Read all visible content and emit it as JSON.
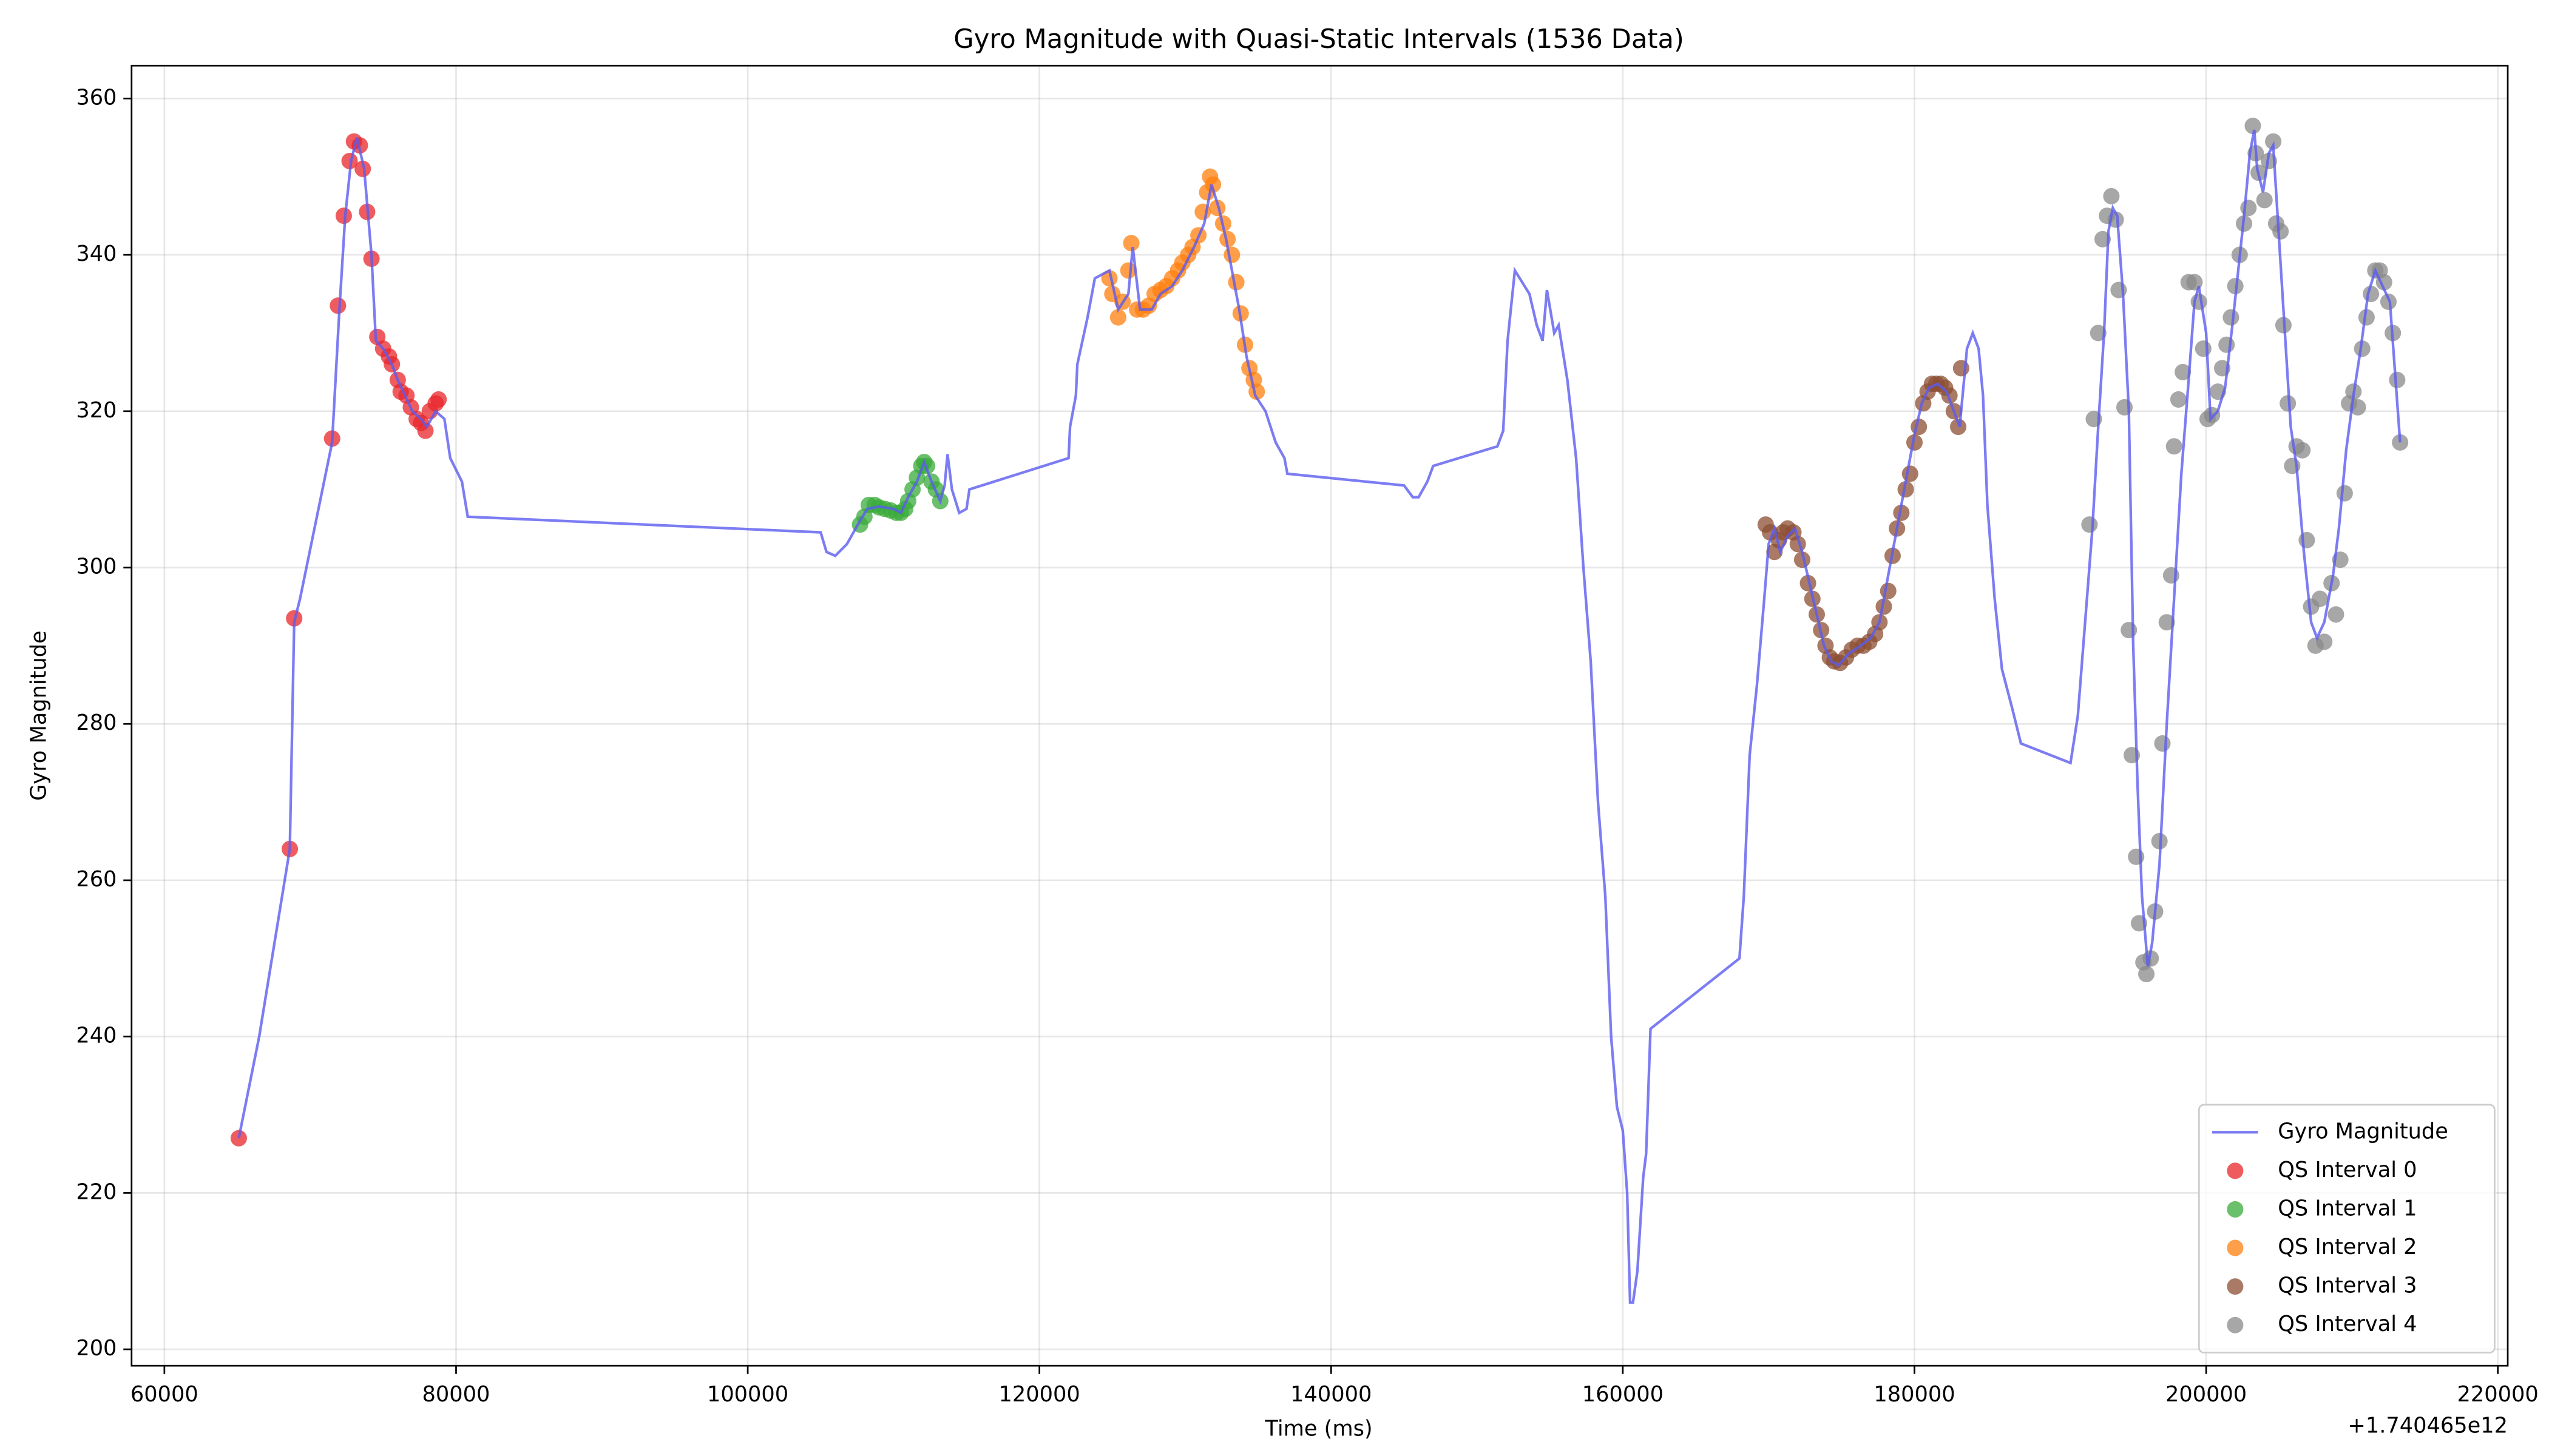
{
  "chart_data": {
    "type": "line",
    "title": "Gyro Magnitude with Quasi-Static Intervals (1536 Data)",
    "x_label": "Time (ms)",
    "y_label": "Gyro Magnitude",
    "x_offset_label": "+1.740465e12",
    "xlim": [
      57750,
      220680
    ],
    "ylim": [
      197.9,
      364.2
    ],
    "xticks": [
      60000,
      80000,
      100000,
      120000,
      140000,
      160000,
      180000,
      200000,
      220000
    ],
    "yticks": [
      200,
      220,
      240,
      260,
      280,
      300,
      320,
      340,
      360
    ],
    "grid": true,
    "legend": "lower right",
    "series": [
      {
        "name": "Gyro Magnitude",
        "type": "line",
        "color": "#5b5bf0",
        "x": [
          65100,
          66500,
          68600,
          68900,
          69300,
          71500,
          72000,
          72400,
          72800,
          73200,
          73700,
          74200,
          74500,
          75000,
          75600,
          76000,
          76500,
          77000,
          77600,
          78000,
          78600,
          79200,
          79600,
          80400,
          80800,
          105000,
          105400,
          106000,
          106800,
          107700,
          108200,
          109000,
          110000,
          110500,
          111000,
          111600,
          112100,
          112600,
          113200,
          113500,
          113700,
          114000,
          114500,
          115000,
          115200,
          122000,
          122100,
          122500,
          122600,
          123300,
          123800,
          124800,
          125400,
          126100,
          126400,
          126900,
          127700,
          128300,
          129100,
          129800,
          130600,
          131300,
          131800,
          132300,
          132800,
          133200,
          133700,
          134200,
          134800,
          135500,
          136200,
          136800,
          137000,
          145000,
          145600,
          146000,
          146600,
          147000,
          151400,
          151800,
          152100,
          152600,
          153600,
          154100,
          154500,
          154800,
          155300,
          155600,
          156200,
          156800,
          157300,
          157800,
          158300,
          158800,
          159200,
          159600,
          160000,
          160300,
          160500,
          160700,
          161000,
          161400,
          161600,
          161900,
          168000,
          168300,
          168700,
          169200,
          169700,
          170000,
          170400,
          170800,
          171300,
          171800,
          172300,
          172800,
          173300,
          173800,
          174300,
          174800,
          175500,
          176300,
          177000,
          177600,
          178100,
          178600,
          179000,
          179500,
          180000,
          180500,
          181000,
          181600,
          182200,
          182700,
          183100,
          183600,
          184000,
          184400,
          184700,
          185000,
          185500,
          186000,
          186700,
          187300,
          190700,
          191200,
          191700,
          192200,
          192600,
          193000,
          193300,
          193600,
          193900,
          194300,
          194700,
          195000,
          195300,
          195600,
          196000,
          196300,
          196800,
          197300,
          197800,
          198300,
          198800,
          199200,
          199500,
          200000,
          200300,
          200800,
          201300,
          201800,
          202200,
          202600,
          203000,
          203300,
          203500,
          203900,
          204300,
          204600,
          205000,
          205400,
          205800,
          206200,
          206700,
          207200,
          207600,
          208100,
          208700,
          209100,
          209600,
          210100,
          210600,
          211100,
          211600,
          212100,
          212600,
          213300
        ],
        "values": [
          227,
          240,
          264,
          293,
          296,
          316,
          333,
          345,
          352,
          355,
          351,
          340,
          329,
          328,
          326,
          324,
          322,
          320,
          319,
          318,
          320,
          319,
          314,
          311,
          306.5,
          304.5,
          302,
          301.5,
          303,
          306,
          307.5,
          307.8,
          307.5,
          307,
          309,
          311,
          313.5,
          311,
          308.5,
          310.5,
          314.5,
          310,
          307,
          307.5,
          310,
          314,
          318,
          322,
          326,
          332,
          337,
          338,
          333,
          335,
          341,
          333,
          333,
          335,
          336,
          338,
          341,
          344,
          349,
          346,
          342,
          338,
          333,
          327,
          322,
          320,
          316,
          314,
          312,
          310.5,
          309,
          309,
          311,
          313,
          315.5,
          317.5,
          329,
          338,
          335,
          331,
          329,
          335.5,
          330,
          331,
          324,
          314,
          300,
          288,
          270,
          258,
          240,
          231,
          228,
          220,
          206,
          206,
          210,
          222,
          225,
          241,
          250,
          258,
          276,
          285,
          296,
          303,
          305,
          302,
          304,
          305,
          302,
          298,
          294,
          290,
          288,
          287.5,
          289,
          290,
          291,
          293,
          298,
          303,
          307,
          312,
          317,
          321,
          323,
          323.5,
          322.5,
          320,
          318,
          328,
          330,
          328,
          322,
          308,
          296,
          287,
          282,
          277.5,
          275,
          281,
          293,
          305,
          318,
          330,
          343,
          346,
          345,
          335,
          320,
          290,
          272,
          258,
          249,
          252,
          262,
          280,
          296,
          312,
          324,
          334,
          336,
          330,
          319,
          320,
          323,
          331,
          338,
          345,
          353,
          356,
          351,
          348,
          353,
          354,
          342,
          330,
          318,
          313,
          302,
          293,
          291,
          293,
          299,
          305,
          315,
          322,
          328,
          335,
          338,
          336,
          334,
          316
        ]
      },
      {
        "name": "QS Interval 0",
        "type": "scatter",
        "color": "#e8252b",
        "x": [
          65100,
          68600,
          68900,
          71500,
          71900,
          72300,
          72700,
          73000,
          73400,
          73600,
          73900,
          74200,
          74600,
          75000,
          75400,
          75600,
          76000,
          76200,
          76600,
          76900,
          77300,
          77600,
          77900,
          78200,
          78600,
          78800
        ],
        "values": [
          227,
          264,
          293.5,
          316.5,
          333.5,
          345,
          352,
          354.5,
          354,
          351,
          345.5,
          339.5,
          329.5,
          328,
          327,
          326,
          324,
          322.5,
          322,
          320.5,
          319,
          318.5,
          317.5,
          320,
          321,
          321.5
        ]
      },
      {
        "name": "QS Interval 1",
        "type": "scatter",
        "color": "#3aab3a",
        "x": [
          107700,
          108000,
          108300,
          108700,
          109000,
          109400,
          109800,
          110200,
          110500,
          110800,
          111000,
          111300,
          111600,
          111900,
          112100,
          112300,
          112600,
          112900,
          113200
        ],
        "values": [
          305.5,
          306.5,
          308,
          308,
          307.7,
          307.5,
          307.3,
          307,
          307,
          307.5,
          308.5,
          310,
          311.5,
          313,
          313.5,
          313,
          311,
          310,
          308.5
        ]
      },
      {
        "name": "QS Interval 2",
        "type": "scatter",
        "color": "#ff7f0e",
        "x": [
          124800,
          125000,
          125400,
          125700,
          126100,
          126300,
          126700,
          127100,
          127500,
          127900,
          128300,
          128700,
          129100,
          129500,
          129800,
          130200,
          130500,
          130900,
          131200,
          131500,
          131700,
          131900,
          132200,
          132600,
          132900,
          133200,
          133500,
          133800,
          134100,
          134400,
          134700,
          134900
        ],
        "values": [
          337,
          335,
          332,
          334,
          338,
          341.5,
          333,
          333,
          333.5,
          335,
          335.5,
          336,
          337,
          338,
          339,
          340,
          341,
          342.5,
          345.5,
          348,
          350,
          349,
          346,
          344,
          342,
          340,
          336.5,
          332.5,
          328.5,
          325.5,
          324,
          322.5
        ]
      },
      {
        "name": "QS Interval 3",
        "type": "scatter",
        "color": "#8c4f33",
        "x": [
          169800,
          170100,
          170400,
          170700,
          171000,
          171300,
          171700,
          172000,
          172300,
          172700,
          173000,
          173300,
          173600,
          173900,
          174200,
          174500,
          174900,
          175300,
          175700,
          176100,
          176500,
          176900,
          177300,
          177600,
          177900,
          178200,
          178500,
          178800,
          179100,
          179400,
          179700,
          180000,
          180300,
          180600,
          180900,
          181200,
          181500,
          181800,
          182100,
          182400,
          182700,
          183000,
          183200
        ],
        "values": [
          305.5,
          304.5,
          302,
          303.5,
          304.5,
          305,
          304.5,
          303,
          301,
          298,
          296,
          294,
          292,
          290,
          288.5,
          288,
          287.8,
          288.5,
          289.5,
          290,
          290,
          290.5,
          291.5,
          293,
          295,
          297,
          301.5,
          305,
          307,
          310,
          312,
          316,
          318,
          321,
          322.5,
          323.5,
          323.5,
          323.5,
          323,
          322,
          320,
          318,
          325.5
        ]
      },
      {
        "name": "QS Interval 4",
        "type": "scatter",
        "color": "#8a8a8a",
        "x": [
          192000,
          192300,
          192600,
          192900,
          193200,
          193500,
          193800,
          194000,
          194400,
          194700,
          194900,
          195200,
          195400,
          195700,
          195900,
          196200,
          196500,
          196800,
          197000,
          197300,
          197600,
          197800,
          198100,
          198400,
          198800,
          199200,
          199500,
          199800,
          200100,
          200400,
          200800,
          201100,
          201400,
          201700,
          202000,
          202300,
          202600,
          202900,
          203200,
          203400,
          203600,
          204000,
          204300,
          204600,
          204800,
          205100,
          205300,
          205600,
          205900,
          206200,
          206600,
          206900,
          207200,
          207500,
          207800,
          208100,
          208600,
          208900,
          209200,
          209500,
          209800,
          210100,
          210400,
          210700,
          211000,
          211300,
          211600,
          211900,
          212200,
          212500,
          212800,
          213100,
          213300
        ],
        "values": [
          305.5,
          319,
          330,
          342,
          345,
          347.5,
          344.5,
          335.5,
          320.5,
          292,
          276,
          263,
          254.5,
          249.5,
          248,
          250,
          256,
          265,
          277.5,
          293,
          299,
          315.5,
          321.5,
          325,
          336.5,
          336.5,
          334,
          328,
          319,
          319.5,
          322.5,
          325.5,
          328.5,
          332,
          336,
          340,
          344,
          346,
          356.5,
          353,
          350.5,
          347,
          352,
          354.5,
          344,
          343,
          331,
          321,
          313,
          315.5,
          315,
          303.5,
          295,
          290,
          296,
          290.5,
          298,
          294,
          301,
          309.5,
          321,
          322.5,
          320.5,
          328,
          332,
          335,
          338,
          338,
          336.5,
          334,
          330,
          324,
          316
        ]
      }
    ]
  }
}
